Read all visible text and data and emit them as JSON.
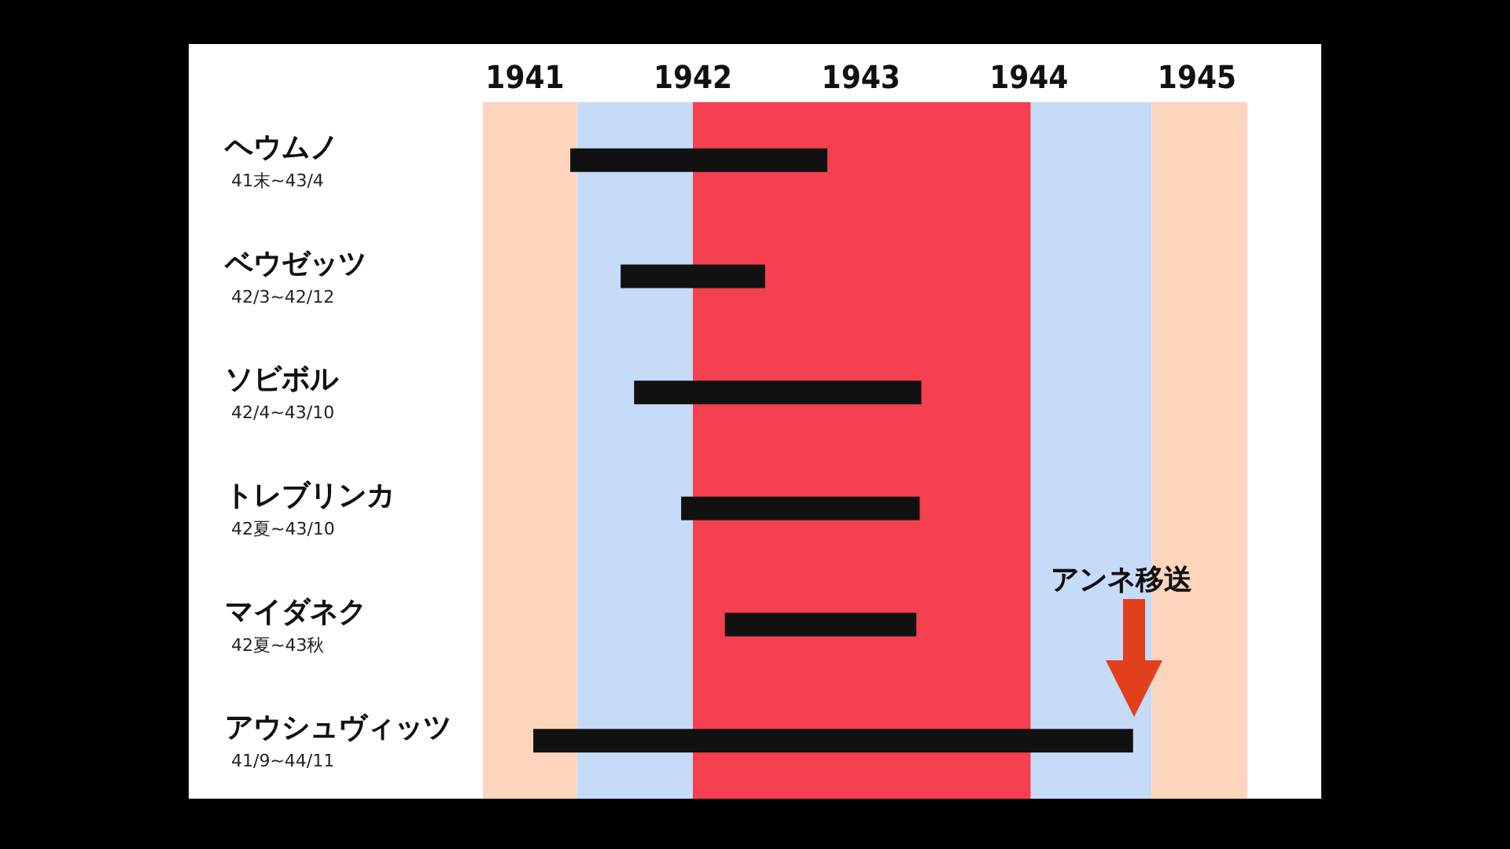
{
  "chart_data": {
    "type": "bar",
    "orientation": "horizontal",
    "categories": [
      "ヘウムノ\n41末~43/4",
      "ベウゼッツ\n42/3~42/12",
      "ソビボル\n42/4~43/10",
      "トレブリンカ\n42夏~43/10",
      "マイダネク\n42夏~43秋",
      "アウシュヴィッツ\n41/9~44/11"
    ],
    "base": [
      1941.27,
      1941.57,
      1941.65,
      1941.93,
      1942.19,
      1941.05
    ],
    "values": [
      1.53,
      0.86,
      1.71,
      1.42,
      1.14,
      3.57
    ],
    "color": "#111111",
    "xlim": [
      1940.75,
      1945.3
    ],
    "xticks": [
      1941,
      1942,
      1943,
      1944,
      1945
    ],
    "bands": [
      {
        "axis": "x",
        "from": 1940.75,
        "to": 1941.31,
        "color": "#fdd5bd"
      },
      {
        "axis": "x",
        "from": 1941.31,
        "to": 1942.0,
        "color": "#c6dbf7"
      },
      {
        "axis": "x",
        "from": 1942.0,
        "to": 1944.01,
        "color": "#f5404f"
      },
      {
        "axis": "x",
        "from": 1944.01,
        "to": 1944.73,
        "color": "#c6dbf7"
      },
      {
        "axis": "x",
        "from": 1944.73,
        "to": 1945.3,
        "color": "#fdd5bd"
      }
    ],
    "annotations": [
      "アンネ移送"
    ]
  }
}
